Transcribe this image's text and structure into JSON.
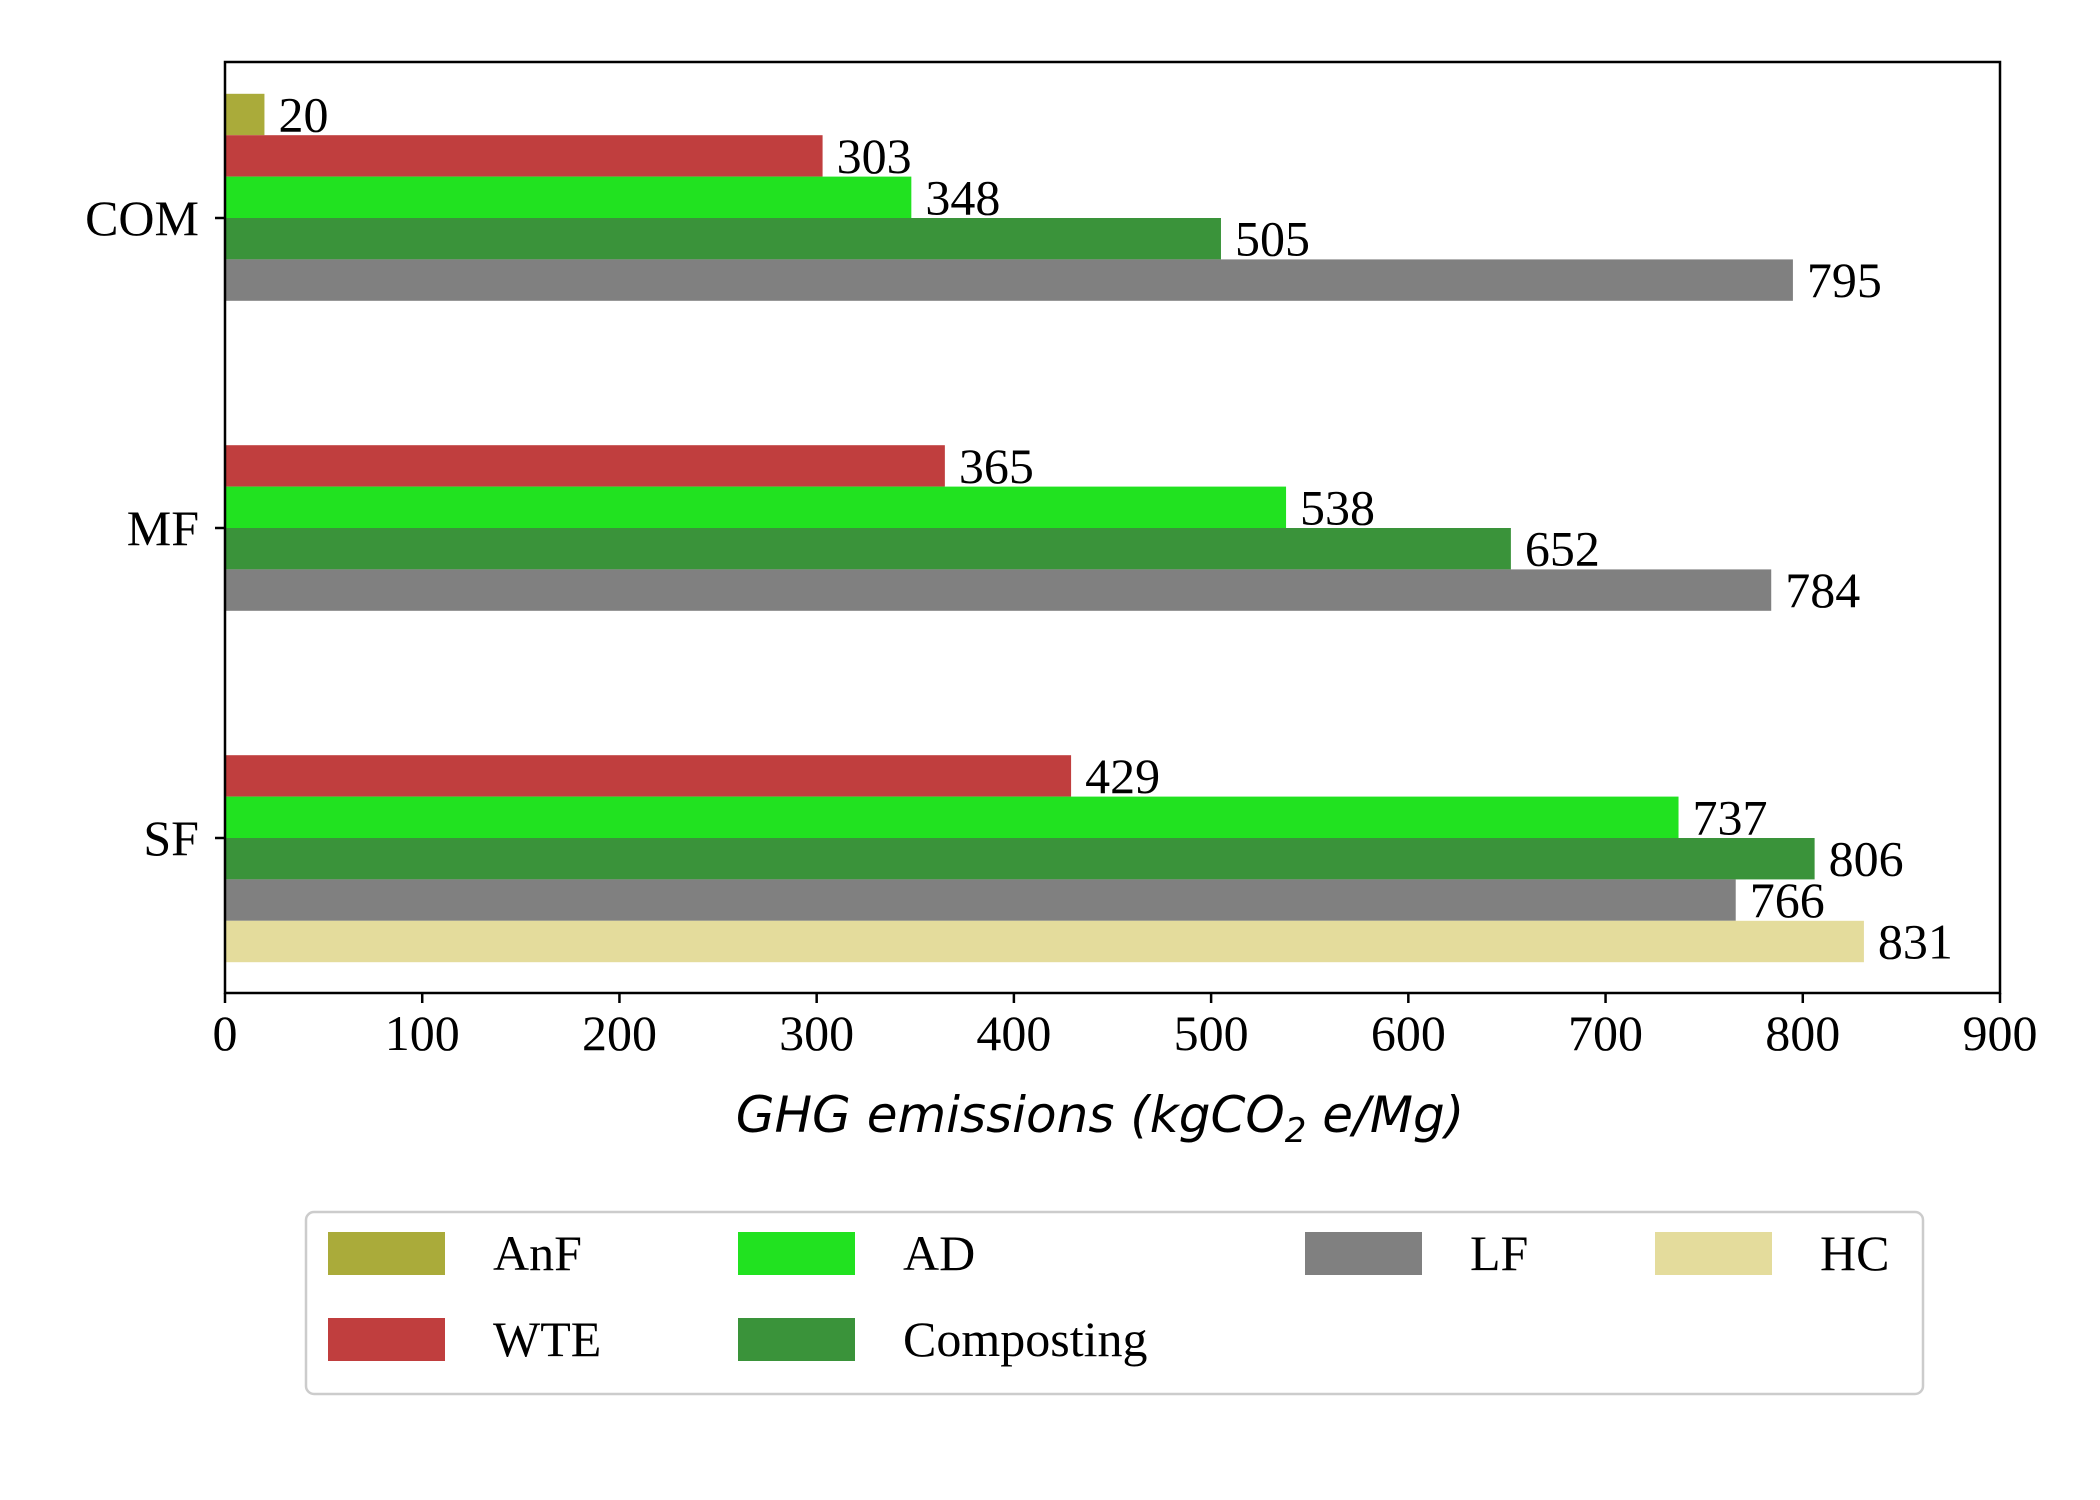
{
  "chart_data": {
    "type": "bar",
    "orientation": "horizontal",
    "categories": [
      "SF",
      "MF",
      "COM"
    ],
    "xlabel_main": "GHG emissions (",
    "xlabel_species": "kgCO",
    "xlabel_subscript": "2",
    "xlabel_tail": " e/Mg)",
    "xlim": [
      0,
      900
    ],
    "xticks": [
      "0",
      "100",
      "200",
      "300",
      "400",
      "500",
      "600",
      "700",
      "800",
      "900"
    ],
    "grid": false,
    "legend_position": "bottom-center",
    "series": [
      {
        "name": "AnF",
        "color": "#aaab3a",
        "values": [
          null,
          null,
          20
        ]
      },
      {
        "name": "WTE",
        "color": "#c03e3e",
        "values": [
          429,
          365,
          303
        ]
      },
      {
        "name": "AD",
        "color": "#21e220",
        "values": [
          737,
          538,
          348
        ]
      },
      {
        "name": "Composting",
        "color": "#3a933a",
        "values": [
          806,
          652,
          505
        ]
      },
      {
        "name": "LF",
        "color": "#808080",
        "values": [
          766,
          784,
          795
        ]
      },
      {
        "name": "HC",
        "color": "#e4dc9c",
        "values": [
          831,
          null,
          null
        ]
      }
    ]
  }
}
